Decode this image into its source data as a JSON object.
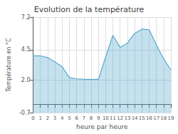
{
  "chart_data": {
    "type": "area",
    "title": "Evolution de la température",
    "xlabel": "heure par heure",
    "ylabel": "Température en °C",
    "x": [
      0,
      1,
      2,
      3,
      4,
      5,
      6,
      7,
      8,
      9,
      10,
      11,
      12,
      13,
      14,
      15,
      16,
      17,
      18,
      19
    ],
    "values": [
      4.0,
      4.0,
      3.85,
      3.5,
      3.1,
      2.2,
      2.1,
      2.05,
      2.05,
      2.05,
      3.9,
      5.7,
      4.7,
      5.05,
      5.85,
      6.2,
      6.15,
      4.9,
      3.75,
      2.85
    ],
    "color": "#55aacc",
    "xlim": [
      0,
      19
    ],
    "xticks": [
      0,
      1,
      2,
      3,
      4,
      5,
      6,
      7,
      8,
      9,
      10,
      11,
      12,
      13,
      14,
      15,
      16,
      17,
      18,
      19
    ],
    "ylim": [
      -0.7,
      7.2
    ],
    "yticks": [
      -0.7,
      {
        "value": 2.0,
        "label": "2.0"
      },
      4.5,
      7.2
    ],
    "grid": true
  }
}
